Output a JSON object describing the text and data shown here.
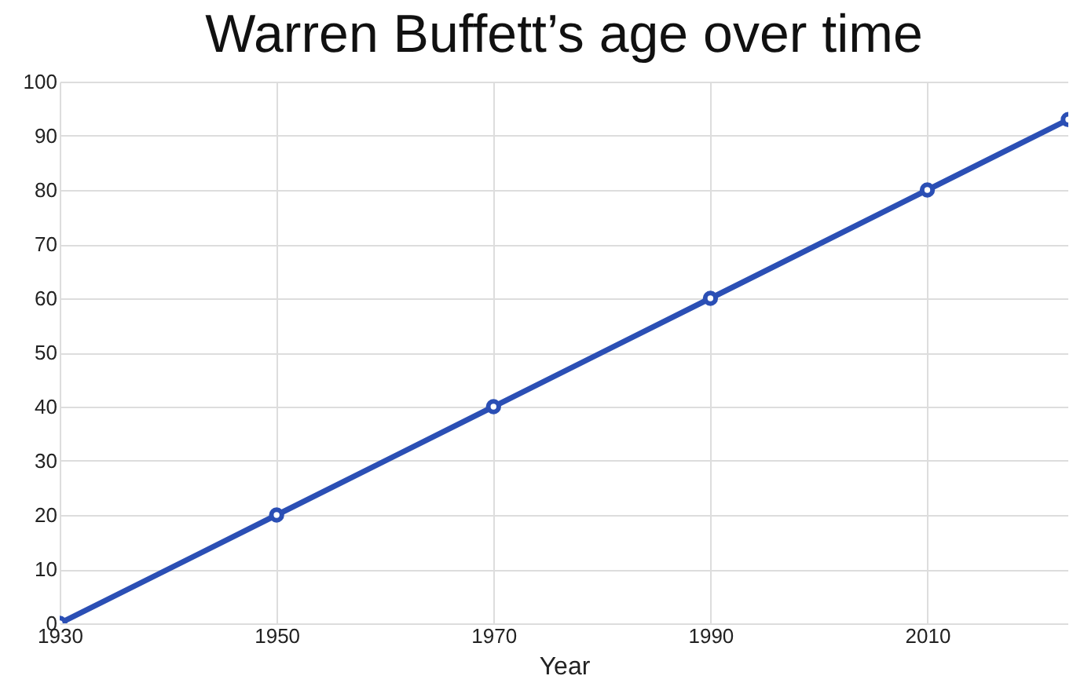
{
  "chart_data": {
    "type": "line",
    "title": "Warren Buffett’s age over time",
    "xlabel": "Year",
    "x": [
      1930,
      1950,
      1970,
      1990,
      2010,
      2023
    ],
    "series": [
      {
        "color": "#2b4fb5",
        "values": [
          0,
          20,
          40,
          60,
          80,
          93
        ]
      }
    ],
    "xlim": [
      1930,
      2023
    ],
    "xticks": [
      1930,
      1950,
      1970,
      1990,
      2010
    ],
    "ylim": [
      0,
      100
    ],
    "yticks": [
      0,
      10,
      20,
      30,
      40,
      50,
      60,
      70,
      80,
      90,
      100
    ],
    "grid": true,
    "marker": "circle",
    "line_style": "solid"
  }
}
